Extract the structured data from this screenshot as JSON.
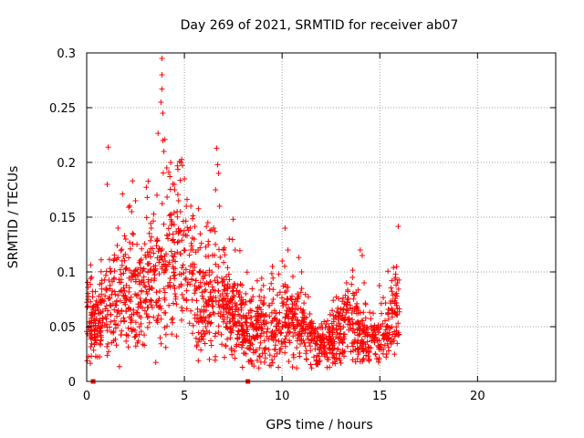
{
  "chart_data": {
    "type": "scatter",
    "title": "Day 269 of 2021, SRMTID for receiver ab07",
    "xlabel": "GPS time / hours",
    "ylabel": "SRMTID / TECUs",
    "xlim": [
      0,
      24
    ],
    "ylim": [
      0,
      0.3
    ],
    "x_ticks": [
      0,
      5,
      10,
      15,
      20
    ],
    "x_tick_labels": [
      "0",
      "5",
      "10",
      "15",
      "20"
    ],
    "y_ticks": [
      0,
      0.05,
      0.1,
      0.15,
      0.2,
      0.25,
      0.3
    ],
    "y_tick_labels": [
      "0",
      "0.05",
      "0.1",
      "0.15",
      "0.2",
      "0.25",
      "0.3"
    ],
    "grid": true,
    "marker": "plus",
    "series_color": "#ff0000",
    "zero_markers": [
      0.33,
      8.25
    ],
    "trend": [
      [
        0.0,
        0.055
      ],
      [
        0.5,
        0.05
      ],
      [
        1.0,
        0.065
      ],
      [
        1.5,
        0.075
      ],
      [
        2.0,
        0.08
      ],
      [
        2.5,
        0.085
      ],
      [
        3.0,
        0.08
      ],
      [
        3.5,
        0.09
      ],
      [
        4.0,
        0.105
      ],
      [
        4.5,
        0.12
      ],
      [
        5.0,
        0.11
      ],
      [
        5.5,
        0.085
      ],
      [
        6.0,
        0.075
      ],
      [
        6.5,
        0.075
      ],
      [
        7.0,
        0.07
      ],
      [
        7.5,
        0.06
      ],
      [
        8.0,
        0.05
      ],
      [
        8.5,
        0.045
      ],
      [
        9.0,
        0.05
      ],
      [
        9.5,
        0.05
      ],
      [
        10.0,
        0.055
      ],
      [
        10.5,
        0.06
      ],
      [
        11.0,
        0.05
      ],
      [
        11.5,
        0.04
      ],
      [
        12.0,
        0.035
      ],
      [
        12.5,
        0.035
      ],
      [
        13.0,
        0.045
      ],
      [
        13.5,
        0.06
      ],
      [
        14.0,
        0.045
      ],
      [
        14.5,
        0.04
      ],
      [
        15.0,
        0.04
      ],
      [
        15.5,
        0.055
      ],
      [
        15.9,
        0.065
      ]
    ],
    "peaks": [
      [
        0.45,
        0.082
      ],
      [
        1.1,
        0.214
      ],
      [
        1.05,
        0.18
      ],
      [
        1.6,
        0.14
      ],
      [
        2.0,
        0.13
      ],
      [
        2.3,
        0.155
      ],
      [
        2.5,
        0.165
      ],
      [
        3.1,
        0.168
      ],
      [
        3.3,
        0.14
      ],
      [
        3.6,
        0.13
      ],
      [
        3.85,
        0.295
      ],
      [
        3.85,
        0.28
      ],
      [
        3.85,
        0.267
      ],
      [
        3.8,
        0.255
      ],
      [
        3.9,
        0.245
      ],
      [
        3.9,
        0.22
      ],
      [
        4.0,
        0.221
      ],
      [
        3.95,
        0.21
      ],
      [
        4.1,
        0.195
      ],
      [
        4.3,
        0.2
      ],
      [
        4.5,
        0.175
      ],
      [
        4.7,
        0.165
      ],
      [
        4.8,
        0.155
      ],
      [
        5.0,
        0.185
      ],
      [
        5.1,
        0.16
      ],
      [
        5.3,
        0.14
      ],
      [
        5.5,
        0.13
      ],
      [
        5.7,
        0.12
      ],
      [
        6.2,
        0.145
      ],
      [
        6.5,
        0.14
      ],
      [
        6.6,
        0.175
      ],
      [
        6.65,
        0.213
      ],
      [
        6.7,
        0.198
      ],
      [
        6.75,
        0.19
      ],
      [
        6.8,
        0.16
      ],
      [
        7.0,
        0.12
      ],
      [
        7.3,
        0.13
      ],
      [
        7.5,
        0.148
      ],
      [
        7.6,
        0.12
      ],
      [
        9.5,
        0.105
      ],
      [
        10.0,
        0.11
      ],
      [
        10.15,
        0.14
      ],
      [
        10.3,
        0.12
      ],
      [
        11.0,
        0.1
      ],
      [
        13.3,
        0.09
      ],
      [
        13.6,
        0.095
      ],
      [
        14.0,
        0.12
      ],
      [
        14.1,
        0.115
      ],
      [
        14.2,
        0.09
      ],
      [
        15.7,
        0.104
      ],
      [
        15.8,
        0.095
      ],
      [
        15.9,
        0.09
      ]
    ],
    "n_points": 1800,
    "x_range_data": [
      0,
      16
    ]
  }
}
